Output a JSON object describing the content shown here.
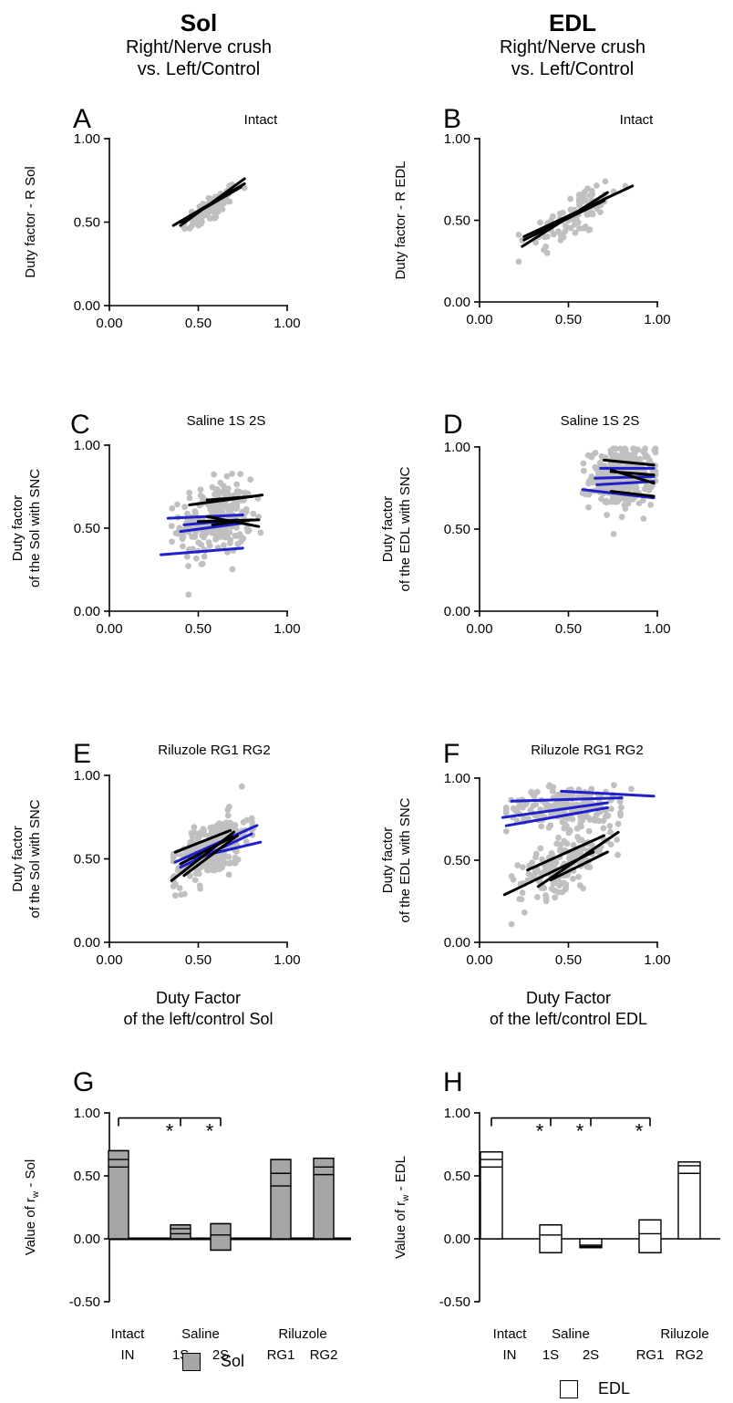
{
  "columns": [
    {
      "title": "Sol",
      "subtitle_line1": "Right/Nerve crush",
      "subtitle_line2": "vs. Left/Control"
    },
    {
      "title": "EDL",
      "subtitle_line1": "Right/Nerve crush",
      "subtitle_line2": "vs. Left/Control"
    }
  ],
  "legend": {
    "sol": "Sol",
    "edl": "EDL",
    "sol_color": "#a6a6a6",
    "edl_color": "#ffffff"
  },
  "colors": {
    "points": "#c0c0c0",
    "saline_fit": "#1f1fcc",
    "fit": "#000000",
    "bar_fill_sol": "#a6a6a6"
  },
  "chart_data": [
    {
      "panel": "A",
      "type": "scatter",
      "title": "Intact",
      "ylabel": [
        "Duty factor - R Sol"
      ],
      "xlabel": [],
      "xlim": [
        0,
        1
      ],
      "ylim": [
        0,
        1
      ],
      "xticks": [
        "0.00",
        "0.50",
        "1.00"
      ],
      "yticks": [
        "0.00",
        "0.50",
        "1.00"
      ],
      "clouds": [
        {
          "cx": 0.57,
          "cy": 0.58,
          "sx": 0.08,
          "sy": 0.07,
          "rho": 0.8,
          "n": 80,
          "xmin": 0.38,
          "xmax": 0.76
        }
      ],
      "lines": [
        {
          "color": "black",
          "x1": 0.36,
          "y1": 0.48,
          "x2": 0.76,
          "y2": 0.73
        },
        {
          "color": "black",
          "x1": 0.4,
          "y1": 0.48,
          "x2": 0.76,
          "y2": 0.76
        },
        {
          "color": "black",
          "x1": 0.4,
          "y1": 0.5,
          "x2": 0.74,
          "y2": 0.71
        }
      ]
    },
    {
      "panel": "B",
      "type": "scatter",
      "title": "Intact",
      "ylabel": [
        "Duty factor - R EDL"
      ],
      "xlabel": [],
      "xlim": [
        0,
        1
      ],
      "ylim": [
        0,
        1
      ],
      "xticks": [
        "0.00",
        "0.50",
        "1.00"
      ],
      "yticks": [
        "0.00",
        "0.50",
        "1.00"
      ],
      "clouds": [
        {
          "cx": 0.52,
          "cy": 0.52,
          "sx": 0.13,
          "sy": 0.11,
          "rho": 0.7,
          "n": 90,
          "xmin": 0.22,
          "xmax": 0.85
        }
      ],
      "lines": [
        {
          "color": "black",
          "x1": 0.24,
          "y1": 0.34,
          "x2": 0.72,
          "y2": 0.67
        },
        {
          "color": "black",
          "x1": 0.25,
          "y1": 0.4,
          "x2": 0.86,
          "y2": 0.71
        },
        {
          "color": "black",
          "x1": 0.25,
          "y1": 0.38,
          "x2": 0.7,
          "y2": 0.62
        }
      ]
    },
    {
      "panel": "C",
      "type": "scatter",
      "title": "Saline 1S 2S",
      "ylabel": [
        "Duty factor",
        "of the Sol with SNC"
      ],
      "xlabel": [],
      "xlim": [
        0,
        1
      ],
      "ylim": [
        0,
        1
      ],
      "xticks": [
        "0.00",
        "0.50",
        "1.00"
      ],
      "yticks": [
        "0.00",
        "0.50",
        "1.00"
      ],
      "clouds": [
        {
          "cx": 0.6,
          "cy": 0.55,
          "sx": 0.1,
          "sy": 0.11,
          "rho": 0.15,
          "n": 260,
          "xmin": 0.35,
          "xmax": 0.85
        }
      ],
      "lines": [
        {
          "color": "blue",
          "x1": 0.29,
          "y1": 0.34,
          "x2": 0.75,
          "y2": 0.38
        },
        {
          "color": "blue",
          "x1": 0.4,
          "y1": 0.48,
          "x2": 0.75,
          "y2": 0.53
        },
        {
          "color": "blue",
          "x1": 0.33,
          "y1": 0.56,
          "x2": 0.75,
          "y2": 0.58
        },
        {
          "color": "blue",
          "x1": 0.42,
          "y1": 0.52,
          "x2": 0.72,
          "y2": 0.55
        },
        {
          "color": "black",
          "x1": 0.45,
          "y1": 0.64,
          "x2": 0.86,
          "y2": 0.7
        },
        {
          "color": "black",
          "x1": 0.55,
          "y1": 0.67,
          "x2": 0.8,
          "y2": 0.69
        },
        {
          "color": "black",
          "x1": 0.55,
          "y1": 0.57,
          "x2": 0.84,
          "y2": 0.51
        },
        {
          "color": "black",
          "x1": 0.5,
          "y1": 0.54,
          "x2": 0.84,
          "y2": 0.55
        },
        {
          "color": "black",
          "x1": 0.58,
          "y1": 0.52,
          "x2": 0.8,
          "y2": 0.55
        }
      ]
    },
    {
      "panel": "D",
      "type": "scatter",
      "title": "Saline 1S 2S",
      "ylabel": [
        "Duty factor",
        "of the EDL  with SNC"
      ],
      "xlabel": [],
      "xlim": [
        0,
        1
      ],
      "ylim": [
        0,
        1
      ],
      "xticks": [
        "0.00",
        "0.50",
        "1.00"
      ],
      "yticks": [
        "0.00",
        "0.50",
        "1.00"
      ],
      "clouds": [
        {
          "cx": 0.8,
          "cy": 0.82,
          "sx": 0.09,
          "sy": 0.09,
          "rho": 0.1,
          "n": 300,
          "xmin": 0.58,
          "xmax": 0.99
        }
      ],
      "lines": [
        {
          "color": "blue",
          "x1": 0.58,
          "y1": 0.74,
          "x2": 0.98,
          "y2": 0.69
        },
        {
          "color": "blue",
          "x1": 0.65,
          "y1": 0.81,
          "x2": 0.98,
          "y2": 0.82
        },
        {
          "color": "blue",
          "x1": 0.68,
          "y1": 0.87,
          "x2": 0.98,
          "y2": 0.87
        },
        {
          "color": "blue",
          "x1": 0.66,
          "y1": 0.77,
          "x2": 0.98,
          "y2": 0.79
        },
        {
          "color": "black",
          "x1": 0.7,
          "y1": 0.92,
          "x2": 0.98,
          "y2": 0.89
        },
        {
          "color": "black",
          "x1": 0.74,
          "y1": 0.85,
          "x2": 0.98,
          "y2": 0.83
        },
        {
          "color": "black",
          "x1": 0.74,
          "y1": 0.86,
          "x2": 0.98,
          "y2": 0.78
        },
        {
          "color": "black",
          "x1": 0.74,
          "y1": 0.73,
          "x2": 0.98,
          "y2": 0.7
        }
      ]
    },
    {
      "panel": "E",
      "type": "scatter",
      "title": "Riluzole RG1 RG2",
      "ylabel": [
        "Duty factor",
        "of the Sol with SNC"
      ],
      "xlabel": [
        "Duty Factor",
        "of the left/control Sol"
      ],
      "xlim": [
        0,
        1
      ],
      "ylim": [
        0,
        1
      ],
      "xticks": [
        "0.00",
        "0.50",
        "1.00"
      ],
      "yticks": [
        "0.00",
        "0.50",
        "1.00"
      ],
      "clouds": [
        {
          "cx": 0.58,
          "cy": 0.56,
          "sx": 0.1,
          "sy": 0.1,
          "rho": 0.6,
          "n": 300,
          "xmin": 0.36,
          "xmax": 0.86
        }
      ],
      "lines": [
        {
          "color": "blue",
          "x1": 0.37,
          "y1": 0.48,
          "x2": 0.83,
          "y2": 0.7
        },
        {
          "color": "blue",
          "x1": 0.45,
          "y1": 0.5,
          "x2": 0.85,
          "y2": 0.6
        },
        {
          "color": "blue",
          "x1": 0.4,
          "y1": 0.45,
          "x2": 0.8,
          "y2": 0.65
        },
        {
          "color": "black",
          "x1": 0.37,
          "y1": 0.54,
          "x2": 0.68,
          "y2": 0.67
        },
        {
          "color": "black",
          "x1": 0.35,
          "y1": 0.37,
          "x2": 0.7,
          "y2": 0.66
        },
        {
          "color": "black",
          "x1": 0.42,
          "y1": 0.4,
          "x2": 0.72,
          "y2": 0.64
        },
        {
          "color": "black",
          "x1": 0.4,
          "y1": 0.47,
          "x2": 0.69,
          "y2": 0.63
        }
      ]
    },
    {
      "panel": "F",
      "type": "scatter",
      "title": "Riluzole RG1 RG2",
      "ylabel": [
        "Duty factor",
        "of the EDL  with SNC"
      ],
      "xlabel": [
        "Duty Factor",
        "of the left/control EDL"
      ],
      "xlim": [
        0,
        1
      ],
      "ylim": [
        0,
        1
      ],
      "xticks": [
        "0.00",
        "0.50",
        "1.00"
      ],
      "yticks": [
        "0.00",
        "0.50",
        "1.00"
      ],
      "clouds": [
        {
          "cx": 0.5,
          "cy": 0.83,
          "sx": 0.18,
          "sy": 0.06,
          "rho": 0.1,
          "n": 200,
          "xmin": 0.15,
          "xmax": 0.99
        },
        {
          "cx": 0.48,
          "cy": 0.48,
          "sx": 0.13,
          "sy": 0.1,
          "rho": 0.65,
          "n": 180,
          "xmin": 0.18,
          "xmax": 0.78
        }
      ],
      "lines": [
        {
          "color": "blue",
          "x1": 0.13,
          "y1": 0.76,
          "x2": 0.72,
          "y2": 0.85
        },
        {
          "color": "blue",
          "x1": 0.18,
          "y1": 0.86,
          "x2": 0.8,
          "y2": 0.88
        },
        {
          "color": "blue",
          "x1": 0.46,
          "y1": 0.92,
          "x2": 0.98,
          "y2": 0.89
        },
        {
          "color": "blue",
          "x1": 0.15,
          "y1": 0.71,
          "x2": 0.72,
          "y2": 0.82
        },
        {
          "color": "black",
          "x1": 0.14,
          "y1": 0.29,
          "x2": 0.64,
          "y2": 0.55
        },
        {
          "color": "black",
          "x1": 0.27,
          "y1": 0.44,
          "x2": 0.7,
          "y2": 0.65
        },
        {
          "color": "black",
          "x1": 0.33,
          "y1": 0.34,
          "x2": 0.78,
          "y2": 0.67
        },
        {
          "color": "black",
          "x1": 0.4,
          "y1": 0.38,
          "x2": 0.72,
          "y2": 0.55
        }
      ]
    },
    {
      "panel": "G",
      "type": "bar",
      "muscle": "Sol",
      "ylabel_pre": "Value of r",
      "ylabel_sub": "w",
      "ylabel_post": " - Sol",
      "ylim": [
        -0.5,
        1.0
      ],
      "yticks": [
        "-0.50",
        "0.00",
        "0.50",
        "1.00"
      ],
      "fill": "#a6a6a6",
      "group_labels": [
        {
          "top": "Intact",
          "subs": [
            "IN"
          ]
        },
        {
          "top": "Saline",
          "subs": [
            "1S",
            "2S"
          ]
        },
        {
          "top": "Riluzole",
          "subs": [
            "RG1",
            "RG2"
          ]
        }
      ],
      "bars": [
        {
          "name": "IN",
          "max": 0.7,
          "mean": 0.63,
          "min": 0.57
        },
        {
          "name": "1S",
          "max": 0.11,
          "mean": 0.08,
          "min": 0.04
        },
        {
          "name": "2S",
          "max": 0.12,
          "mean": 0.03,
          "min": -0.09
        },
        {
          "name": "RG1",
          "max": 0.63,
          "mean": 0.52,
          "min": 0.42
        },
        {
          "name": "RG2",
          "max": 0.64,
          "mean": 0.57,
          "min": 0.51
        }
      ],
      "significance": {
        "from": 0,
        "to": [
          1,
          2
        ],
        "stars": [
          "*",
          "*"
        ]
      }
    },
    {
      "panel": "H",
      "type": "bar",
      "muscle": "EDL",
      "ylabel_pre": "Value of r",
      "ylabel_sub": "w",
      "ylabel_post": " - EDL",
      "ylim": [
        -0.5,
        1.0
      ],
      "yticks": [
        "-0.50",
        "0.00",
        "0.50",
        "1.00"
      ],
      "fill": "#ffffff",
      "group_labels": [
        {
          "top": "Intact",
          "subs": [
            "IN"
          ]
        },
        {
          "top": "Saline",
          "subs": [
            "1S",
            "2S"
          ]
        },
        {
          "top": "Riluzole",
          "subs": [
            "RG1",
            "RG2"
          ]
        }
      ],
      "bars": [
        {
          "name": "IN",
          "max": 0.69,
          "mean": 0.63,
          "min": 0.57
        },
        {
          "name": "1S",
          "max": 0.11,
          "mean": 0.03,
          "min": -0.11
        },
        {
          "name": "2S",
          "max": -0.05,
          "mean": -0.06,
          "min": -0.07
        },
        {
          "name": "RG1",
          "max": 0.15,
          "mean": 0.04,
          "min": -0.11
        },
        {
          "name": "RG2",
          "max": 0.61,
          "mean": 0.58,
          "min": 0.52
        }
      ],
      "significance": {
        "from": 0,
        "to": [
          1,
          2,
          3
        ],
        "stars": [
          "*",
          "*",
          "*"
        ]
      }
    }
  ]
}
